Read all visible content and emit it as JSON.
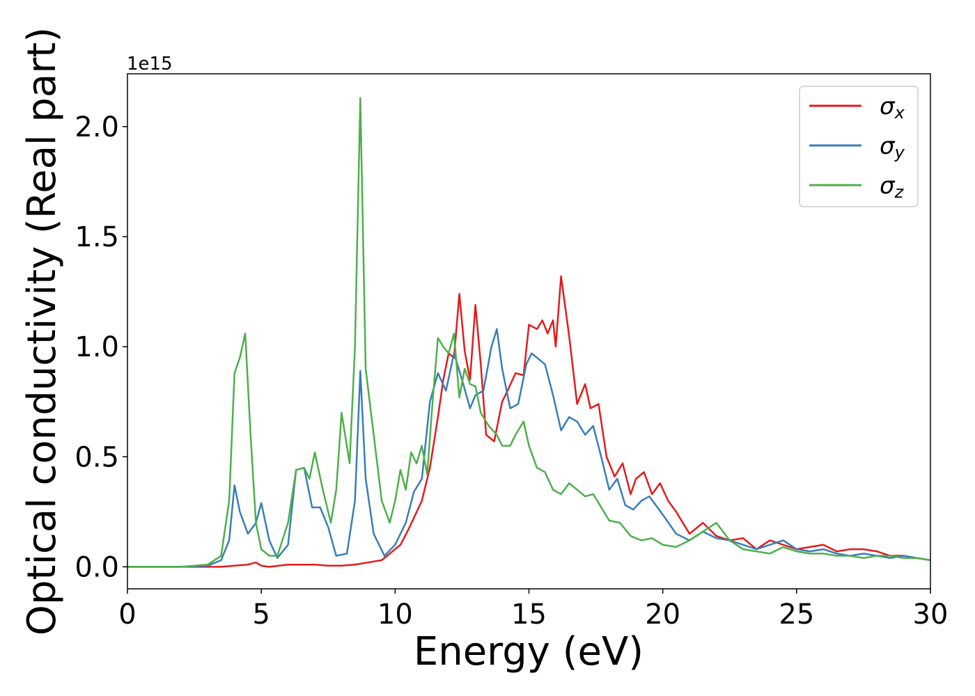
{
  "chart_data": {
    "type": "line",
    "title": "",
    "xlabel": "Energy (eV)",
    "ylabel": "Optical conductivity (Real part)",
    "y_offset_label": "1e15",
    "xlim": [
      0,
      30
    ],
    "ylim": [
      -0.1,
      2.24
    ],
    "x_ticks": [
      0,
      5,
      10,
      15,
      20,
      25,
      30
    ],
    "x_tick_labels": [
      "0",
      "5",
      "10",
      "15",
      "20",
      "25",
      "30"
    ],
    "y_ticks": [
      0.0,
      0.5,
      1.0,
      1.5,
      2.0
    ],
    "y_tick_labels": [
      "0.0",
      "0.5",
      "1.0",
      "1.5",
      "2.0"
    ],
    "grid": false,
    "legend_position": "top-right",
    "series": [
      {
        "name": "σx",
        "legend_base": "σ",
        "legend_sub": "x",
        "color": "#e41a1c",
        "x": [
          0,
          1,
          2,
          3,
          3.5,
          4,
          4.5,
          4.8,
          5.0,
          5.3,
          6,
          6.5,
          7,
          7.5,
          8,
          8.5,
          9,
          9.5,
          10,
          10.2,
          10.5,
          11,
          11.3,
          11.6,
          11.8,
          12.0,
          12.2,
          12.4,
          12.6,
          12.8,
          13.0,
          13.2,
          13.4,
          13.7,
          14.0,
          14.2,
          14.5,
          14.8,
          15.0,
          15.3,
          15.5,
          15.7,
          15.9,
          16.0,
          16.2,
          16.5,
          16.8,
          17.1,
          17.3,
          17.6,
          17.9,
          18.2,
          18.5,
          18.8,
          19.0,
          19.3,
          19.6,
          19.9,
          20.2,
          20.5,
          21.0,
          21.5,
          22.0,
          22.5,
          23.0,
          23.5,
          24.0,
          24.5,
          25.0,
          25.5,
          26.0,
          26.5,
          27.0,
          27.5,
          28.0,
          28.5,
          29.0,
          29.5,
          30.0
        ],
        "values": [
          0,
          0,
          0,
          0,
          0,
          0.005,
          0.01,
          0.02,
          0.005,
          0.0,
          0.01,
          0.01,
          0.01,
          0.005,
          0.005,
          0.01,
          0.02,
          0.03,
          0.08,
          0.1,
          0.17,
          0.3,
          0.45,
          0.68,
          0.85,
          0.97,
          0.95,
          1.24,
          0.98,
          0.85,
          1.19,
          0.92,
          0.6,
          0.57,
          0.75,
          0.8,
          0.88,
          0.87,
          1.1,
          1.08,
          1.12,
          1.06,
          1.12,
          1.0,
          1.32,
          1.05,
          0.74,
          0.83,
          0.72,
          0.74,
          0.5,
          0.41,
          0.47,
          0.33,
          0.4,
          0.43,
          0.33,
          0.38,
          0.3,
          0.25,
          0.15,
          0.2,
          0.14,
          0.12,
          0.13,
          0.08,
          0.12,
          0.1,
          0.08,
          0.09,
          0.1,
          0.07,
          0.08,
          0.08,
          0.07,
          0.05,
          0.05,
          0.04,
          0.03
        ]
      },
      {
        "name": "σy",
        "legend_base": "σ",
        "legend_sub": "y",
        "color": "#377eb8",
        "x": [
          0,
          1,
          2,
          3,
          3.5,
          3.8,
          4.0,
          4.2,
          4.5,
          4.8,
          5.0,
          5.3,
          5.6,
          6.0,
          6.3,
          6.6,
          6.9,
          7.2,
          7.5,
          7.8,
          8.2,
          8.5,
          8.7,
          8.9,
          9.2,
          9.6,
          10.0,
          10.4,
          10.7,
          11.0,
          11.3,
          11.6,
          11.9,
          12.2,
          12.5,
          12.8,
          13.0,
          13.3,
          13.6,
          13.8,
          14.0,
          14.3,
          14.6,
          14.9,
          15.1,
          15.3,
          15.6,
          15.9,
          16.2,
          16.5,
          16.8,
          17.1,
          17.4,
          17.7,
          18.0,
          18.3,
          18.6,
          18.9,
          19.2,
          19.5,
          19.8,
          20.1,
          20.5,
          21.0,
          21.5,
          22.0,
          22.5,
          23.0,
          23.5,
          24.0,
          24.5,
          25.0,
          25.5,
          26.0,
          26.5,
          27.0,
          27.5,
          28.0,
          28.5,
          29.0,
          29.5,
          30.0
        ],
        "values": [
          0,
          0,
          0,
          0.005,
          0.03,
          0.12,
          0.37,
          0.25,
          0.15,
          0.2,
          0.29,
          0.12,
          0.04,
          0.1,
          0.44,
          0.45,
          0.27,
          0.27,
          0.18,
          0.05,
          0.06,
          0.3,
          0.89,
          0.4,
          0.15,
          0.05,
          0.1,
          0.2,
          0.34,
          0.4,
          0.75,
          0.88,
          0.8,
          0.97,
          0.85,
          0.72,
          0.78,
          0.8,
          1.0,
          1.08,
          0.9,
          0.72,
          0.74,
          0.92,
          0.97,
          0.95,
          0.92,
          0.78,
          0.62,
          0.68,
          0.66,
          0.6,
          0.64,
          0.5,
          0.35,
          0.4,
          0.28,
          0.26,
          0.3,
          0.32,
          0.27,
          0.22,
          0.15,
          0.12,
          0.16,
          0.13,
          0.12,
          0.1,
          0.08,
          0.1,
          0.12,
          0.08,
          0.07,
          0.08,
          0.06,
          0.05,
          0.06,
          0.05,
          0.04,
          0.05,
          0.04,
          0.03
        ]
      },
      {
        "name": "σz",
        "legend_base": "σ",
        "legend_sub": "z",
        "color": "#4daf4a",
        "x": [
          0,
          1,
          2,
          3,
          3.5,
          3.8,
          4.0,
          4.2,
          4.4,
          4.6,
          4.8,
          5.0,
          5.3,
          5.6,
          6.0,
          6.3,
          6.6,
          6.8,
          7.0,
          7.3,
          7.6,
          7.8,
          8.0,
          8.3,
          8.5,
          8.7,
          8.9,
          9.2,
          9.5,
          9.8,
          10.0,
          10.2,
          10.4,
          10.6,
          10.8,
          11.0,
          11.2,
          11.4,
          11.6,
          11.8,
          12.0,
          12.2,
          12.4,
          12.6,
          12.8,
          13.0,
          13.2,
          13.5,
          13.8,
          14.0,
          14.3,
          14.5,
          14.8,
          15.0,
          15.3,
          15.6,
          15.9,
          16.2,
          16.5,
          16.8,
          17.1,
          17.4,
          17.7,
          18.0,
          18.4,
          18.8,
          19.2,
          19.6,
          20.0,
          20.5,
          21.0,
          21.5,
          22.0,
          22.5,
          23.0,
          23.5,
          24.0,
          24.5,
          25.0,
          25.5,
          26.0,
          26.5,
          27.0,
          27.5,
          28.0,
          28.5,
          29.0,
          29.5,
          30.0
        ],
        "values": [
          0,
          0,
          0,
          0.01,
          0.05,
          0.3,
          0.88,
          0.95,
          1.06,
          0.6,
          0.2,
          0.08,
          0.05,
          0.05,
          0.2,
          0.44,
          0.45,
          0.4,
          0.52,
          0.35,
          0.2,
          0.35,
          0.7,
          0.47,
          1.0,
          2.13,
          0.9,
          0.6,
          0.3,
          0.2,
          0.3,
          0.44,
          0.35,
          0.52,
          0.47,
          0.55,
          0.42,
          0.75,
          1.04,
          1.0,
          0.97,
          1.06,
          0.77,
          0.9,
          0.83,
          0.82,
          0.7,
          0.64,
          0.6,
          0.55,
          0.55,
          0.6,
          0.66,
          0.55,
          0.45,
          0.43,
          0.35,
          0.33,
          0.38,
          0.35,
          0.32,
          0.33,
          0.27,
          0.21,
          0.2,
          0.14,
          0.12,
          0.13,
          0.1,
          0.09,
          0.12,
          0.16,
          0.2,
          0.12,
          0.08,
          0.07,
          0.06,
          0.09,
          0.07,
          0.06,
          0.06,
          0.05,
          0.05,
          0.04,
          0.05,
          0.05,
          0.04,
          0.04,
          0.03
        ]
      }
    ]
  }
}
